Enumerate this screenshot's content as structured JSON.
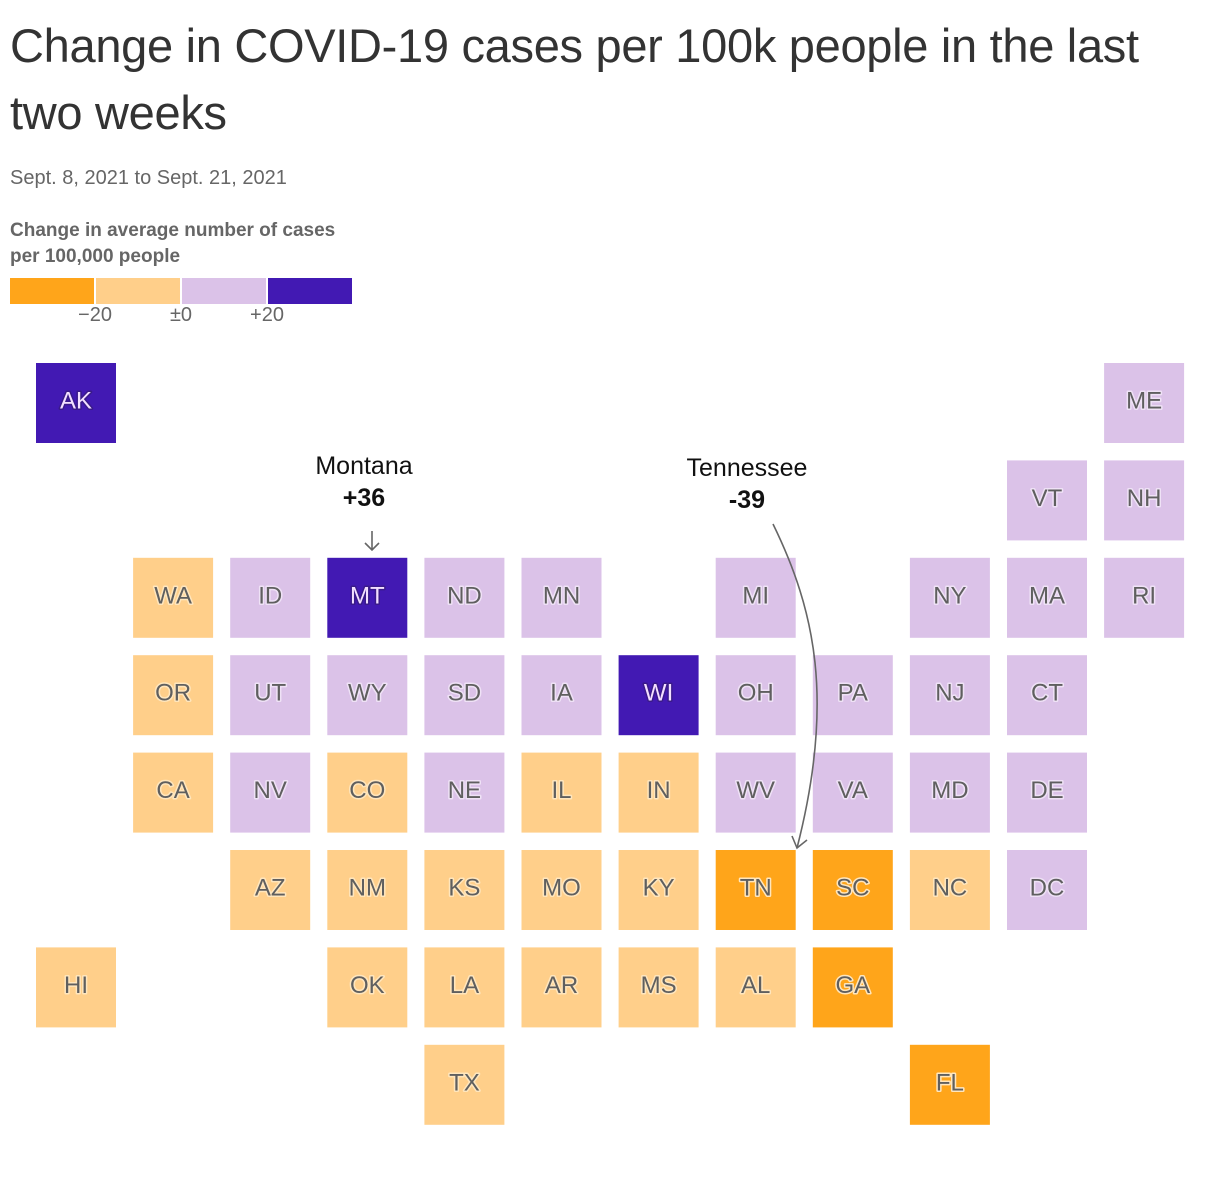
{
  "title": "Change in COVID-19 cases per 100k people in the last two weeks",
  "subtitle": "Sept. 8, 2021 to Sept. 21, 2021",
  "legend": {
    "title": "Change in average number of cases per 100,000 people",
    "bins": [
      {
        "label": "below -20",
        "color": "#FFA51A"
      },
      {
        "label": "-20 to 0",
        "color": "#FFCF8A"
      },
      {
        "label": "0 to +20",
        "color": "#DBC2E8"
      },
      {
        "label": "above +20",
        "color": "#4219B3"
      }
    ],
    "ticks": [
      "−20",
      "±0",
      "+20"
    ]
  },
  "colors": {
    "text_dark_tile": "#F3E0FF",
    "text_light_tile": "#5f5f5f",
    "annotation_arrow": "#666666"
  },
  "annotations": [
    {
      "state": "Montana",
      "value": "+36",
      "target": "MT"
    },
    {
      "state": "Tennessee",
      "value": "-39",
      "target": "TN"
    }
  ],
  "chart_data": {
    "type": "heatmap",
    "subtype": "tile-grid-map",
    "title": "Change in COVID-19 cases per 100k people in the last two weeks",
    "subtitle": "Sept. 8, 2021 to Sept. 21, 2021",
    "legend_title": "Change in average number of cases per 100,000 people",
    "bin_breaks": [
      -20,
      0,
      20
    ],
    "bin_labels": [
      "below -20",
      "-20 to 0",
      "0 to +20",
      "above +20"
    ],
    "legend_placement": "top-left",
    "tiles": [
      {
        "state": "AK",
        "col": 0,
        "row": 0,
        "bin": 3
      },
      {
        "state": "ME",
        "col": 11,
        "row": 0,
        "bin": 2
      },
      {
        "state": "VT",
        "col": 10,
        "row": 1,
        "bin": 2
      },
      {
        "state": "NH",
        "col": 11,
        "row": 1,
        "bin": 2
      },
      {
        "state": "WA",
        "col": 1,
        "row": 2,
        "bin": 1
      },
      {
        "state": "ID",
        "col": 2,
        "row": 2,
        "bin": 2
      },
      {
        "state": "MT",
        "col": 3,
        "row": 2,
        "bin": 3,
        "value": 36
      },
      {
        "state": "ND",
        "col": 4,
        "row": 2,
        "bin": 2
      },
      {
        "state": "MN",
        "col": 5,
        "row": 2,
        "bin": 2
      },
      {
        "state": "MI",
        "col": 7,
        "row": 2,
        "bin": 2
      },
      {
        "state": "NY",
        "col": 9,
        "row": 2,
        "bin": 2
      },
      {
        "state": "MA",
        "col": 10,
        "row": 2,
        "bin": 2
      },
      {
        "state": "RI",
        "col": 11,
        "row": 2,
        "bin": 2
      },
      {
        "state": "OR",
        "col": 1,
        "row": 3,
        "bin": 1
      },
      {
        "state": "UT",
        "col": 2,
        "row": 3,
        "bin": 2
      },
      {
        "state": "WY",
        "col": 3,
        "row": 3,
        "bin": 2
      },
      {
        "state": "SD",
        "col": 4,
        "row": 3,
        "bin": 2
      },
      {
        "state": "IA",
        "col": 5,
        "row": 3,
        "bin": 2
      },
      {
        "state": "WI",
        "col": 6,
        "row": 3,
        "bin": 3
      },
      {
        "state": "OH",
        "col": 7,
        "row": 3,
        "bin": 2
      },
      {
        "state": "PA",
        "col": 8,
        "row": 3,
        "bin": 2
      },
      {
        "state": "NJ",
        "col": 9,
        "row": 3,
        "bin": 2
      },
      {
        "state": "CT",
        "col": 10,
        "row": 3,
        "bin": 2
      },
      {
        "state": "CA",
        "col": 1,
        "row": 4,
        "bin": 1
      },
      {
        "state": "NV",
        "col": 2,
        "row": 4,
        "bin": 2
      },
      {
        "state": "CO",
        "col": 3,
        "row": 4,
        "bin": 1
      },
      {
        "state": "NE",
        "col": 4,
        "row": 4,
        "bin": 2
      },
      {
        "state": "IL",
        "col": 5,
        "row": 4,
        "bin": 1
      },
      {
        "state": "IN",
        "col": 6,
        "row": 4,
        "bin": 1
      },
      {
        "state": "WV",
        "col": 7,
        "row": 4,
        "bin": 2
      },
      {
        "state": "VA",
        "col": 8,
        "row": 4,
        "bin": 2
      },
      {
        "state": "MD",
        "col": 9,
        "row": 4,
        "bin": 2
      },
      {
        "state": "DE",
        "col": 10,
        "row": 4,
        "bin": 2
      },
      {
        "state": "AZ",
        "col": 2,
        "row": 5,
        "bin": 1
      },
      {
        "state": "NM",
        "col": 3,
        "row": 5,
        "bin": 1
      },
      {
        "state": "KS",
        "col": 4,
        "row": 5,
        "bin": 1
      },
      {
        "state": "MO",
        "col": 5,
        "row": 5,
        "bin": 1
      },
      {
        "state": "KY",
        "col": 6,
        "row": 5,
        "bin": 1
      },
      {
        "state": "TN",
        "col": 7,
        "row": 5,
        "bin": 0,
        "value": -39
      },
      {
        "state": "SC",
        "col": 8,
        "row": 5,
        "bin": 0
      },
      {
        "state": "NC",
        "col": 9,
        "row": 5,
        "bin": 1
      },
      {
        "state": "DC",
        "col": 10,
        "row": 5,
        "bin": 2
      },
      {
        "state": "HI",
        "col": 0,
        "row": 6,
        "bin": 1
      },
      {
        "state": "OK",
        "col": 3,
        "row": 6,
        "bin": 1
      },
      {
        "state": "LA",
        "col": 4,
        "row": 6,
        "bin": 1
      },
      {
        "state": "AR",
        "col": 5,
        "row": 6,
        "bin": 1
      },
      {
        "state": "MS",
        "col": 6,
        "row": 6,
        "bin": 1
      },
      {
        "state": "AL",
        "col": 7,
        "row": 6,
        "bin": 1
      },
      {
        "state": "GA",
        "col": 8,
        "row": 6,
        "bin": 0
      },
      {
        "state": "TX",
        "col": 4,
        "row": 7,
        "bin": 1
      },
      {
        "state": "FL",
        "col": 9,
        "row": 7,
        "bin": 0
      }
    ]
  }
}
